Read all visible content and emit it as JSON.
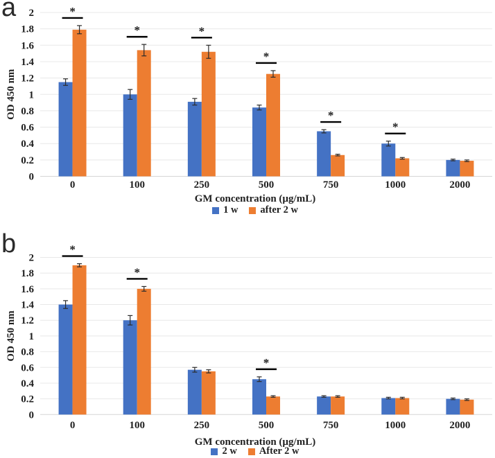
{
  "figure": {
    "description": "Two-panel grouped bar chart figure",
    "panel_labels": [
      "a",
      "b"
    ]
  },
  "colors": {
    "series_blue": "#4472C4",
    "series_orange": "#ED7D31",
    "gridline": "#E8E8E8",
    "axis_line": "#D6D6D6",
    "error_bar": "#2b2b2b",
    "significance": "#000000",
    "text": "#1f1f1f",
    "background": "#ffffff"
  },
  "chart_data": [
    {
      "type": "bar",
      "panel_label": "a",
      "xlabel": "GM concentration (µg/mL)",
      "ylabel": "OD 450 nm",
      "ylim": [
        0,
        2
      ],
      "ytick_step": 0.2,
      "yticks": [
        "0",
        "0.2",
        "0.4",
        "0.6",
        "0.8",
        "1",
        "1.2",
        "1.4",
        "1.6",
        "1.8",
        "2"
      ],
      "grid": true,
      "legend_position": "bottom",
      "categories": [
        "0",
        "100",
        "250",
        "500",
        "750",
        "1000",
        "2000"
      ],
      "series": [
        {
          "name": "1 w",
          "color": "#4472C4",
          "values": [
            1.15,
            1.0,
            0.91,
            0.84,
            0.55,
            0.4,
            0.2
          ],
          "errors": [
            0.04,
            0.06,
            0.04,
            0.03,
            0.02,
            0.03,
            0.01
          ]
        },
        {
          "name": "after 2 w",
          "color": "#ED7D31",
          "values": [
            1.79,
            1.54,
            1.52,
            1.25,
            0.26,
            0.22,
            0.19
          ],
          "errors": [
            0.05,
            0.07,
            0.08,
            0.04,
            0.01,
            0.01,
            0.01
          ]
        }
      ],
      "significance_marks": {
        "symbol": "*",
        "category_indices": [
          0,
          1,
          2,
          3,
          4,
          5
        ]
      }
    },
    {
      "type": "bar",
      "panel_label": "b",
      "xlabel": "GM concentration (µg/mL)",
      "ylabel": "OD 450 nm",
      "ylim": [
        0,
        2
      ],
      "ytick_step": 0.2,
      "yticks": [
        "0",
        "0.2",
        "0.4",
        "0.6",
        "0.8",
        "1",
        "1.2",
        "1.4",
        "1.6",
        "1.8",
        "2"
      ],
      "grid": true,
      "legend_position": "bottom",
      "categories": [
        "0",
        "100",
        "250",
        "500",
        "750",
        "1000",
        "2000"
      ],
      "series": [
        {
          "name": "2 w",
          "color": "#4472C4",
          "values": [
            1.4,
            1.2,
            0.57,
            0.45,
            0.23,
            0.21,
            0.2
          ],
          "errors": [
            0.05,
            0.06,
            0.03,
            0.03,
            0.01,
            0.01,
            0.01
          ]
        },
        {
          "name": "After 2 w",
          "color": "#ED7D31",
          "values": [
            1.9,
            1.6,
            0.55,
            0.23,
            0.23,
            0.21,
            0.19
          ],
          "errors": [
            0.02,
            0.03,
            0.02,
            0.01,
            0.01,
            0.01,
            0.01
          ]
        }
      ],
      "significance_marks": {
        "symbol": "*",
        "category_indices": [
          0,
          1,
          3
        ]
      }
    }
  ]
}
